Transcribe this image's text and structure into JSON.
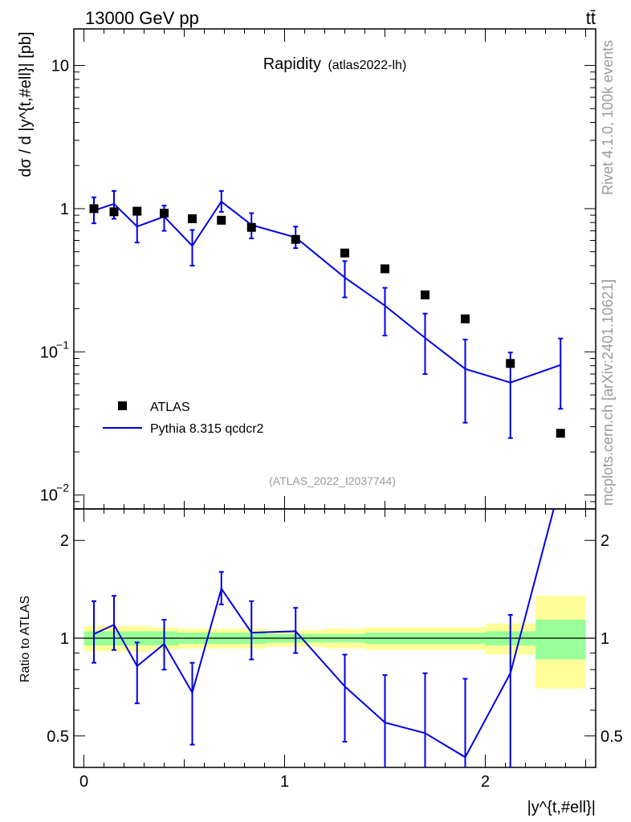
{
  "header": {
    "left": "13000 GeV pp",
    "right": "tt̄"
  },
  "side": {
    "rivet": "Rivet 4.1.0,  100k events",
    "mcplots": "mcplots.cern.ch [arXiv:2401.10621]"
  },
  "colors": {
    "mc": "#0000e6",
    "data": "#000000",
    "band_inner": "#99ff99",
    "band_outer": "#ffff99",
    "watermark": "#999999"
  },
  "chart_data": {
    "type": "line",
    "title": "Rapidity",
    "subtitle": "(atlas2022-lh)",
    "watermark": "(ATLAS_2022_I2037744)",
    "ylabel": "dσ / d |y^{t,#ell}| [pb]",
    "ratio_ylabel": "Ratio to ATLAS",
    "xlabel": "|y^{t,#ell}|",
    "yscale": "log",
    "ylim": [
      0.008,
      18
    ],
    "ratio_ylim": [
      0.4,
      2.5
    ],
    "xlim": [
      -0.05,
      2.55
    ],
    "x_ticks": [
      0,
      1,
      2
    ],
    "y_ticks": [
      {
        "v": 0.01,
        "base": "10",
        "exp": "−2"
      },
      {
        "v": 0.1,
        "base": "10",
        "exp": "−1"
      },
      {
        "v": 1,
        "base": "1",
        "exp": ""
      },
      {
        "v": 10,
        "base": "10",
        "exp": ""
      }
    ],
    "ratio_ticks": [
      {
        "v": 0.5,
        "label": "0.5"
      },
      {
        "v": 1,
        "label": "1"
      },
      {
        "v": 2,
        "label": "2"
      }
    ],
    "legend": {
      "position": "bottom-left",
      "data_label": "ATLAS",
      "mc_label": "Pythia 8.315 qcdcr2"
    },
    "bins": [
      {
        "lo": 0.0,
        "hi": 0.1
      },
      {
        "lo": 0.1,
        "hi": 0.2
      },
      {
        "lo": 0.2,
        "hi": 0.33
      },
      {
        "lo": 0.33,
        "hi": 0.47
      },
      {
        "lo": 0.47,
        "hi": 0.61
      },
      {
        "lo": 0.61,
        "hi": 0.76
      },
      {
        "lo": 0.76,
        "hi": 0.91
      },
      {
        "lo": 0.91,
        "hi": 1.2
      },
      {
        "lo": 1.2,
        "hi": 1.4
      },
      {
        "lo": 1.4,
        "hi": 1.6
      },
      {
        "lo": 1.6,
        "hi": 1.8
      },
      {
        "lo": 1.8,
        "hi": 2.0
      },
      {
        "lo": 2.0,
        "hi": 2.25
      },
      {
        "lo": 2.25,
        "hi": 2.5
      }
    ],
    "x": [
      0.05,
      0.15,
      0.265,
      0.4,
      0.54,
      0.685,
      0.835,
      1.055,
      1.3,
      1.5,
      1.7,
      1.9,
      2.125,
      2.375
    ],
    "data": [
      1.0,
      0.95,
      0.96,
      0.93,
      0.85,
      0.83,
      0.74,
      0.61,
      0.49,
      0.38,
      0.25,
      0.17,
      0.083,
      0.027
    ],
    "mc": [
      0.97,
      1.08,
      0.75,
      0.88,
      0.55,
      1.12,
      0.77,
      0.63,
      0.33,
      0.21,
      0.125,
      0.076,
      0.061,
      0.081
    ],
    "mc_err_lo": [
      0.79,
      0.85,
      0.58,
      0.7,
      0.4,
      0.95,
      0.62,
      0.53,
      0.24,
      0.13,
      0.07,
      0.032,
      0.025,
      0.04
    ],
    "mc_err_hi": [
      1.2,
      1.33,
      0.95,
      1.05,
      0.71,
      1.33,
      0.93,
      0.75,
      0.43,
      0.28,
      0.185,
      0.122,
      0.099,
      0.124
    ],
    "ratio": [
      1.03,
      1.1,
      0.82,
      0.96,
      0.68,
      1.42,
      1.04,
      1.05,
      0.71,
      0.55,
      0.51,
      0.43,
      0.78,
      3.0
    ],
    "ratio_err_lo": [
      0.84,
      0.92,
      0.63,
      0.8,
      0.47,
      1.27,
      0.86,
      0.9,
      0.48,
      0.3,
      0.3,
      0.3,
      0.3,
      3.0
    ],
    "ratio_err_hi": [
      1.3,
      1.35,
      0.97,
      1.14,
      0.84,
      1.6,
      1.3,
      1.24,
      0.89,
      0.77,
      0.78,
      0.75,
      1.18,
      3.0
    ],
    "band_inner_lo": [
      0.95,
      0.95,
      0.95,
      0.95,
      0.96,
      0.96,
      0.96,
      0.97,
      0.97,
      0.96,
      0.96,
      0.96,
      0.95,
      0.86
    ],
    "band_inner_hi": [
      1.05,
      1.05,
      1.05,
      1.05,
      1.04,
      1.04,
      1.04,
      1.03,
      1.03,
      1.04,
      1.04,
      1.04,
      1.05,
      1.14
    ],
    "band_outer_lo": [
      0.91,
      0.91,
      0.91,
      0.92,
      0.93,
      0.93,
      0.93,
      0.94,
      0.93,
      0.92,
      0.92,
      0.92,
      0.89,
      0.7
    ],
    "band_outer_hi": [
      1.09,
      1.09,
      1.09,
      1.08,
      1.07,
      1.07,
      1.07,
      1.06,
      1.07,
      1.08,
      1.08,
      1.08,
      1.11,
      1.35
    ]
  }
}
